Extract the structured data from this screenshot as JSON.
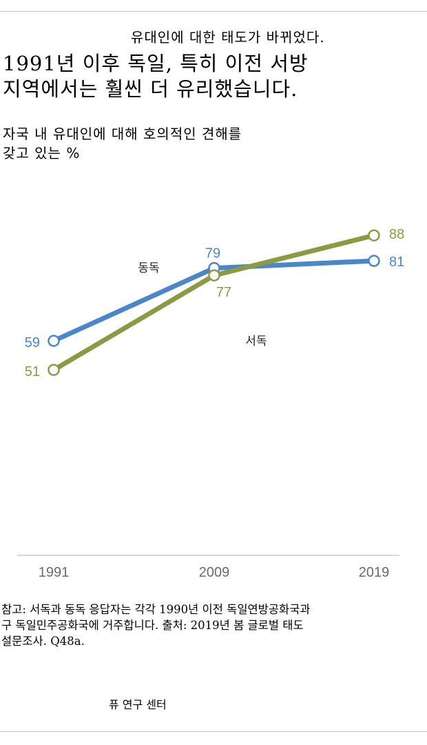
{
  "header": {
    "kicker": "유대인에 대한 태도가 바뀌었다.",
    "title_line1": "1991년 이후 독일, 특히 이전 서방",
    "title_line2": "지역에서는 훨씬 더 유리했습니다.",
    "subtitle_line1": "자국 내 유대인에 대해 호의적인 견해를",
    "subtitle_line2": "갖고 있는 %"
  },
  "chart_data": {
    "type": "line",
    "x": [
      "1991",
      "2009",
      "2019"
    ],
    "series": [
      {
        "name": "동독",
        "values": [
          59,
          79,
          81
        ],
        "color": "#4a86c8"
      },
      {
        "name": "서독",
        "values": [
          51,
          77,
          88
        ],
        "color": "#8b9a44"
      }
    ],
    "ylim": [
      0,
      100
    ],
    "grid": false,
    "xlabel": "",
    "ylabel": ""
  },
  "footer": {
    "note_line1": "참고: 서독과 동독 응답자는 각각 1990년 이전 독일연방공화국과",
    "note_line2": "구 독일민주공화국에 거주합니다. 출처: 2019년 봄 글로벌 태도",
    "note_line3": "설문조사. Q48a.",
    "source": "퓨 연구 센터"
  }
}
